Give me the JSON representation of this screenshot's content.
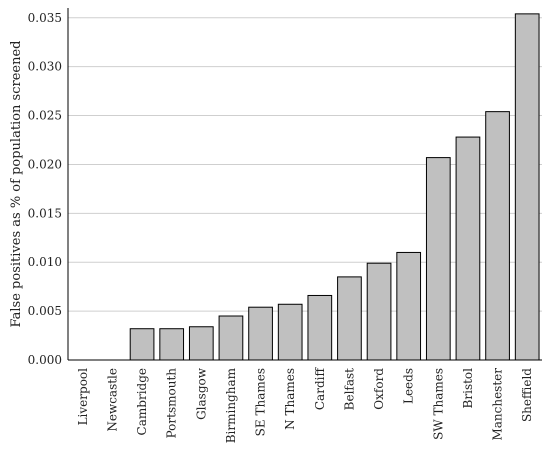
{
  "chart_data": {
    "type": "bar",
    "title": "",
    "xlabel": "",
    "ylabel": "False positives as % of population screened",
    "categories": [
      "Liverpool",
      "Newcastle",
      "Cambridge",
      "Portsmouth",
      "Glasgow",
      "Birmingham",
      "SE Thames",
      "N Thames",
      "Cardiff",
      "Belfast",
      "Oxford",
      "Leeds",
      "SW Thames",
      "Bristol",
      "Manchester",
      "Sheffield"
    ],
    "values": [
      0.0,
      0.0,
      0.0032,
      0.0032,
      0.0034,
      0.0045,
      0.0054,
      0.0057,
      0.0066,
      0.0085,
      0.0099,
      0.011,
      0.0207,
      0.0228,
      0.0254,
      0.0354
    ],
    "ylim": [
      0,
      0.036
    ],
    "yticks": [
      "0.000",
      "0.005",
      "0.010",
      "0.015",
      "0.020",
      "0.025",
      "0.030",
      "0.035"
    ],
    "grid": true,
    "colors": {
      "bar": "#c0c0c0",
      "bar_edge": "#000000",
      "grid": "#cfcfcf"
    }
  }
}
